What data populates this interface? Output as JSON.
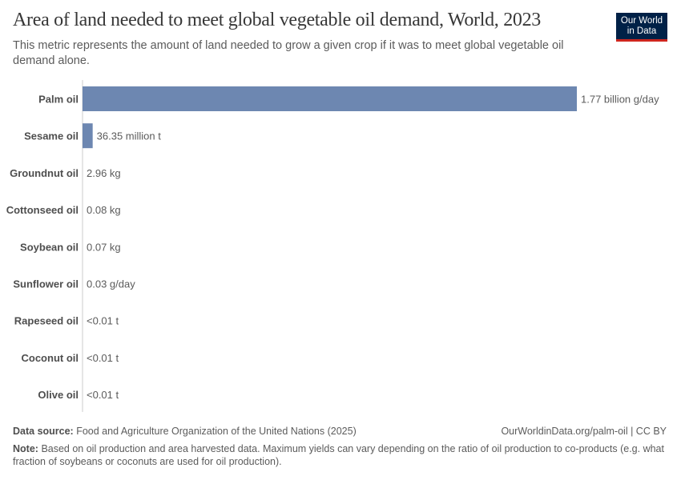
{
  "header": {
    "title": "Area of land needed to meet global vegetable oil demand, World, 2023",
    "subtitle": "This metric represents the amount of land needed to grow a given crop if it was to meet global vegetable oil demand alone.",
    "logo": "Our World in Data"
  },
  "footer": {
    "source_label": "Data source:",
    "source": "Food and Agriculture Organization of the United Nations (2025)",
    "url": "OurWorldinData.org/palm-oil | CC BY",
    "note_label": "Note:",
    "note": "Based on oil production and area harvested data. Maximum yields can vary depending on the ratio of oil production to co-products (e.g. what fraction of soybeans or coconuts are used for oil production)."
  },
  "chart_data": {
    "type": "bar",
    "orientation": "horizontal",
    "bar_color": "#6d87b1",
    "categories": [
      "Palm oil",
      "Sesame oil",
      "Groundnut oil",
      "Cottonseed oil",
      "Soybean oil",
      "Sunflower oil",
      "Rapeseed oil",
      "Coconut oil",
      "Olive oil"
    ],
    "values": [
      1770000000,
      36350000,
      2.96,
      0.08,
      0.07,
      0.03,
      0.005,
      0.005,
      0.005
    ],
    "data_labels": [
      "1.77 billion g/day",
      "36.35 million t",
      "2.96 kg",
      "0.08 kg",
      "0.07 kg",
      "0.03 g/day",
      "<0.01 t",
      "<0.01 t",
      "<0.01 t"
    ]
  }
}
